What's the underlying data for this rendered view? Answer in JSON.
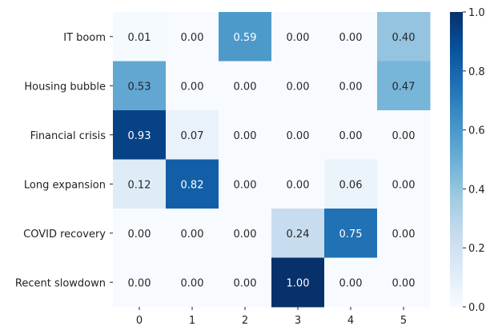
{
  "chart_data": {
    "type": "heatmap",
    "title": "",
    "xlabel": "",
    "ylabel": "",
    "x_categories": [
      "0",
      "1",
      "2",
      "3",
      "4",
      "5"
    ],
    "y_categories": [
      "IT boom",
      "Housing bubble",
      "Financial crisis",
      "Long expansion",
      "COVID recovery",
      "Recent slowdown"
    ],
    "values": [
      [
        0.01,
        0.0,
        0.59,
        0.0,
        0.0,
        0.4
      ],
      [
        0.53,
        0.0,
        0.0,
        0.0,
        0.0,
        0.47
      ],
      [
        0.93,
        0.07,
        0.0,
        0.0,
        0.0,
        0.0
      ],
      [
        0.12,
        0.82,
        0.0,
        0.0,
        0.06,
        0.0
      ],
      [
        0.0,
        0.0,
        0.0,
        0.24,
        0.75,
        0.0
      ],
      [
        0.0,
        0.0,
        0.0,
        1.0,
        0.0,
        0.0
      ]
    ],
    "annotations": [
      [
        "0.01",
        "0.00",
        "0.59",
        "0.00",
        "0.00",
        "0.40"
      ],
      [
        "0.53",
        "0.00",
        "0.00",
        "0.00",
        "0.00",
        "0.47"
      ],
      [
        "0.93",
        "0.07",
        "0.00",
        "0.00",
        "0.00",
        "0.00"
      ],
      [
        "0.12",
        "0.82",
        "0.00",
        "0.00",
        "0.06",
        "0.00"
      ],
      [
        "0.00",
        "0.00",
        "0.00",
        "0.24",
        "0.75",
        "0.00"
      ],
      [
        "0.00",
        "0.00",
        "0.00",
        "1.00",
        "0.00",
        "0.00"
      ]
    ],
    "colormap": "Blues",
    "colorbar": {
      "range": [
        0,
        1
      ],
      "ticks": [
        0.0,
        0.2,
        0.4,
        0.6,
        0.8,
        1.0
      ],
      "tick_labels": [
        "0.0",
        "0.2",
        "0.4",
        "0.6",
        "0.8",
        "1.0"
      ]
    },
    "grid": false
  }
}
